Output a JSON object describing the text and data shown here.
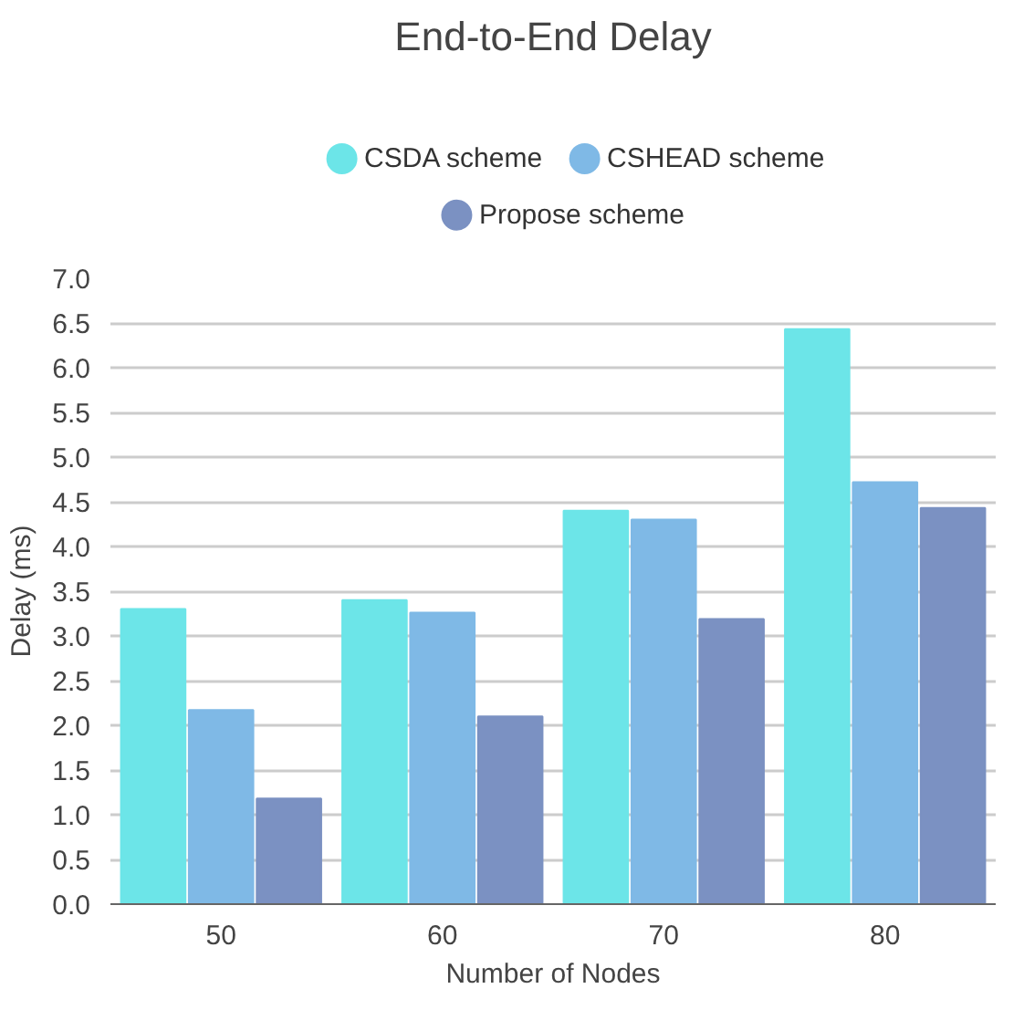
{
  "chart_data": {
    "type": "bar",
    "title": "End-to-End Delay",
    "xlabel": "Number of Nodes",
    "ylabel": "Delay (ms)",
    "categories": [
      "50",
      "60",
      "70",
      "80"
    ],
    "series": [
      {
        "name": "CSDA scheme",
        "color": "#6ce5e8",
        "values": [
          3.3,
          3.4,
          4.4,
          6.43
        ]
      },
      {
        "name": "CSHEAD scheme",
        "color": "#7fb9e6",
        "values": [
          2.17,
          3.26,
          4.3,
          4.72
        ]
      },
      {
        "name": "Propose scheme",
        "color": "#7b91c2",
        "values": [
          1.18,
          2.1,
          3.19,
          4.43
        ]
      }
    ],
    "ylim": [
      0,
      7
    ],
    "yticks": [
      {
        "value": 0,
        "label": "0.0"
      },
      {
        "value": 0.5,
        "label": "0.5"
      },
      {
        "value": 1,
        "label": "1.0"
      },
      {
        "value": 1.5,
        "label": "1.5"
      },
      {
        "value": 2,
        "label": "2.0"
      },
      {
        "value": 2.5,
        "label": "2.5"
      },
      {
        "value": 3,
        "label": "3.0"
      },
      {
        "value": 3.5,
        "label": "3.5"
      },
      {
        "value": 4,
        "label": "4.0"
      },
      {
        "value": 4.5,
        "label": "4.5"
      },
      {
        "value": 5,
        "label": "5.0"
      },
      {
        "value": 5.5,
        "label": "5.5"
      },
      {
        "value": 6,
        "label": "6.0"
      },
      {
        "value": 6.5,
        "label": "6.5"
      },
      {
        "value": 7,
        "label": "7.0"
      }
    ],
    "grid": "y",
    "legend": "top"
  }
}
